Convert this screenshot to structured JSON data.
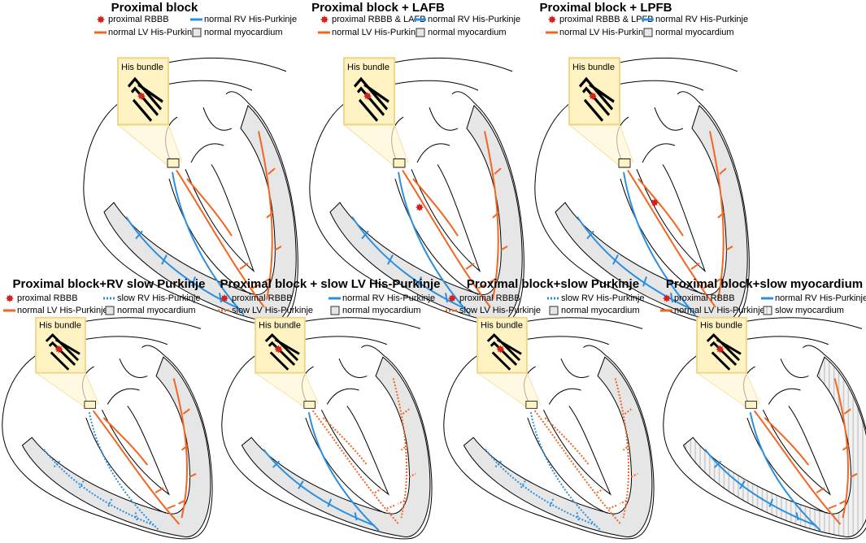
{
  "panels": [
    {
      "title": "Proximal block",
      "his_label": "His bundle",
      "legend": [
        {
          "label": "proximal RBBB",
          "color": "#d42020",
          "marker": "star"
        },
        {
          "label": "normal RV His-Purkinje",
          "color": "#2b8fe0",
          "marker": "line"
        },
        {
          "label": "normal LV His-Purkinje",
          "color": "#f26522",
          "marker": "line"
        },
        {
          "label": "normal myocardium",
          "color": "#e6e6e6",
          "marker": "box"
        }
      ]
    },
    {
      "title": "Proximal block + LAFB",
      "his_label": "His bundle",
      "legend": [
        {
          "label": "proximal RBBB & LAFB",
          "color": "#d42020",
          "marker": "star"
        },
        {
          "label": "normal RV His-Purkinje",
          "color": "#2b8fe0",
          "marker": "line"
        },
        {
          "label": "normal LV His-Purkinje",
          "color": "#f26522",
          "marker": "line"
        },
        {
          "label": "normal myocardium",
          "color": "#e6e6e6",
          "marker": "box"
        }
      ]
    },
    {
      "title": "Proximal block + LPFB",
      "his_label": "His bundle",
      "legend": [
        {
          "label": "proximal RBBB & LPFB",
          "color": "#d42020",
          "marker": "star"
        },
        {
          "label": "normal RV His-Purkinje",
          "color": "#2b8fe0",
          "marker": "line"
        },
        {
          "label": "normal LV His-Purkinje",
          "color": "#f26522",
          "marker": "line"
        },
        {
          "label": "normal myocardium",
          "color": "#e6e6e6",
          "marker": "box"
        }
      ]
    },
    {
      "title": "Proximal block+RV slow Purkinje",
      "his_label": "His bundle",
      "legend": [
        {
          "label": "proximal RBBB",
          "color": "#d42020",
          "marker": "star"
        },
        {
          "label": "slow RV His-Purkinje",
          "color": "#2b8fe0",
          "marker": "dotted-line"
        },
        {
          "label": "normal LV His-Purkinje",
          "color": "#f26522",
          "marker": "line"
        },
        {
          "label": "normal myocardium",
          "color": "#e6e6e6",
          "marker": "box"
        }
      ]
    },
    {
      "title": "Proximal block + slow LV His-Purkinje",
      "his_label": "His bundle",
      "legend": [
        {
          "label": "proximal RBBB",
          "color": "#d42020",
          "marker": "star"
        },
        {
          "label": "normal RV His-Purkinje",
          "color": "#2b8fe0",
          "marker": "line"
        },
        {
          "label": "slow LV His-Purkinje",
          "color": "#f26522",
          "marker": "dotted-line"
        },
        {
          "label": "normal myocardium",
          "color": "#e6e6e6",
          "marker": "box"
        }
      ]
    },
    {
      "title": "Proximal block+slow Purkinje",
      "his_label": "His bundle",
      "legend": [
        {
          "label": "proximal RBBB",
          "color": "#d42020",
          "marker": "star"
        },
        {
          "label": "slow RV His-Purkinje",
          "color": "#2b8fe0",
          "marker": "dotted-line"
        },
        {
          "label": "slow LV His-Purkinje",
          "color": "#f26522",
          "marker": "dotted-line"
        },
        {
          "label": "normal myocardium",
          "color": "#e6e6e6",
          "marker": "box"
        }
      ]
    },
    {
      "title": "Proximal block+slow myocardium",
      "his_label": "His bundle",
      "legend": [
        {
          "label": "proximal RBBB",
          "color": "#d42020",
          "marker": "star"
        },
        {
          "label": "normal RV His-Purkinje",
          "color": "#2b8fe0",
          "marker": "line"
        },
        {
          "label": "normal LV His-Purkinje",
          "color": "#f26522",
          "marker": "line"
        },
        {
          "label": "slow myocardium",
          "color": "#e6e6e6",
          "marker": "hatched-box"
        }
      ]
    }
  ]
}
